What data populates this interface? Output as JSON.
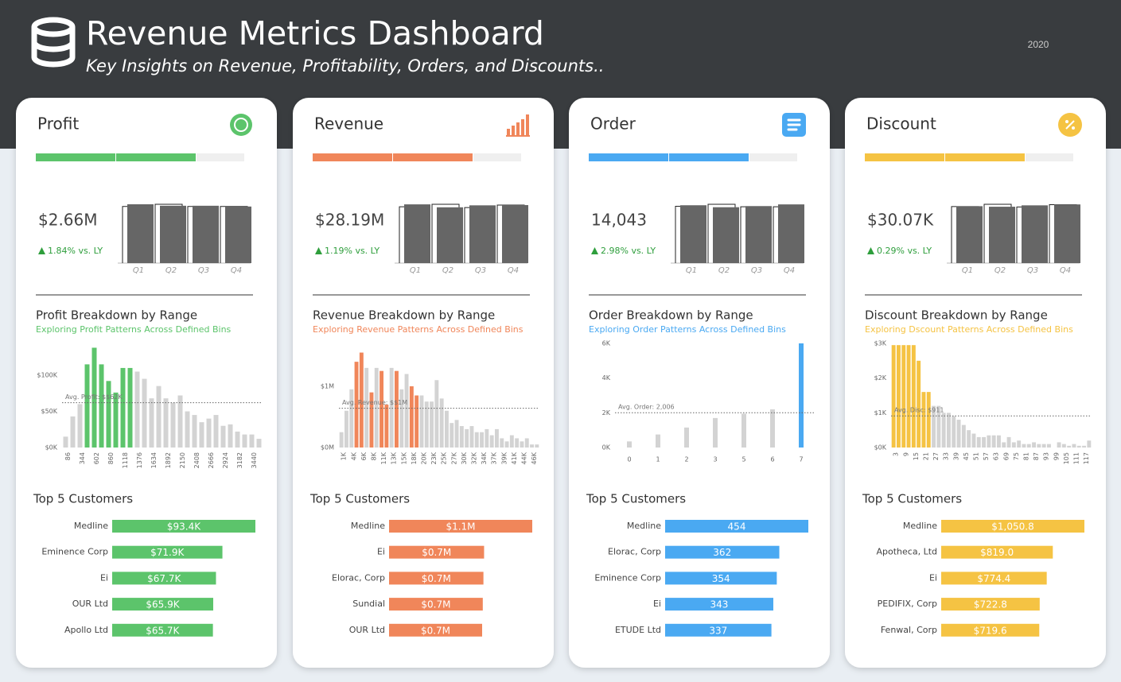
{
  "header": {
    "title": "Revenue Metrics Dashboard",
    "subtitle": "Key Insights on Revenue, Profitability, Orders, and Discounts..",
    "year": "2020"
  },
  "cards": [
    {
      "name": "Profit",
      "color": "#5cc46b",
      "kpi": "$2.66M",
      "change": "1.84% vs. LY",
      "quarters": {
        "type": "bar",
        "categories": [
          "Q1",
          "Q2",
          "Q3",
          "Q4"
        ],
        "values": [
          680000,
          663000,
          663000,
          654000
        ],
        "previous": [
          655000,
          680000,
          655000,
          655000
        ]
      },
      "breakdown": {
        "type": "histogram",
        "title": "Profit Breakdown by Range",
        "subtitle": "Exploring Profit Patterns Across Defined Bins",
        "ylim": [
          0,
          144000
        ],
        "yticks": [
          {
            "value": 0,
            "label": "$0K"
          },
          {
            "value": 50000,
            "label": "$50K"
          },
          {
            "value": 100000,
            "label": "$100K"
          }
        ],
        "rotated_labels": true,
        "categories": [
          "86",
          null,
          "344",
          null,
          "602",
          null,
          "860",
          null,
          "1118",
          null,
          "1376",
          null,
          "1634",
          null,
          "1892",
          null,
          "2150",
          null,
          "2408",
          null,
          "2666",
          null,
          "2924",
          null,
          "3182",
          null,
          "3440",
          null
        ],
        "values": [
          15000,
          43000,
          60000,
          115000,
          138000,
          115000,
          92000,
          76000,
          110000,
          110000,
          105000,
          95000,
          68000,
          85000,
          68000,
          62000,
          72000,
          50000,
          45000,
          35000,
          40000,
          45000,
          30000,
          32000,
          22000,
          18000,
          18000,
          12000
        ],
        "highlighted": [
          false,
          false,
          false,
          true,
          true,
          true,
          true,
          true,
          true,
          true,
          false,
          false,
          false,
          false,
          false,
          false,
          false,
          false,
          false,
          false,
          false,
          false,
          false,
          false,
          false,
          false,
          false,
          false
        ],
        "average": {
          "value": 62000,
          "label": "Avg. Profit: $$62K"
        }
      },
      "top": {
        "type": "bar",
        "title": "Top 5 Customers",
        "categories": [
          "Medline",
          "Eminence Corp",
          "Ei",
          "OUR Ltd",
          "Apollo Ltd"
        ],
        "values": [
          93400,
          71900,
          67700,
          65900,
          65700
        ],
        "value_labels": [
          "$93.4K",
          "$71.9K",
          "$67.7K",
          "$65.9K",
          "$65.7K"
        ]
      }
    },
    {
      "name": "Revenue",
      "color": "#f0865a",
      "kpi": "$28.19M",
      "change": "1.19% vs. LY",
      "quarters": {
        "type": "bar",
        "categories": [
          "Q1",
          "Q2",
          "Q3",
          "Q4"
        ],
        "values": [
          7190000,
          6830000,
          7070000,
          7100000
        ],
        "previous": [
          6900000,
          7200000,
          6800000,
          7100000
        ]
      },
      "breakdown": {
        "type": "histogram",
        "title": "Revenue Breakdown by Range",
        "subtitle": "Exploring Revenue Patterns Across Defined Bins",
        "ylim": [
          0,
          1700000
        ],
        "yticks": [
          {
            "value": 0,
            "label": "$0M"
          },
          {
            "value": 1000000,
            "label": "$1M"
          }
        ],
        "rotated_labels": true,
        "categories": [
          "1K",
          null,
          "4K",
          null,
          "6K",
          null,
          "8K",
          null,
          "11K",
          null,
          "13K",
          null,
          "15K",
          null,
          "18K",
          null,
          "20K",
          null,
          "23K",
          null,
          "25K",
          null,
          "27K",
          null,
          "30K",
          null,
          "32K",
          null,
          "34K",
          null,
          "37K",
          null,
          "39K",
          null,
          "41K",
          null,
          "44K",
          null,
          "46K",
          null
        ],
        "values": [
          250000,
          600000,
          950000,
          1400000,
          1550000,
          1300000,
          900000,
          1300000,
          1250000,
          700000,
          1300000,
          1250000,
          950000,
          1200000,
          1000000,
          850000,
          850000,
          750000,
          750000,
          1100000,
          800000,
          600000,
          400000,
          450000,
          350000,
          300000,
          350000,
          250000,
          250000,
          300000,
          200000,
          300000,
          150000,
          100000,
          200000,
          150000,
          100000,
          150000,
          50000,
          50000
        ],
        "highlighted": [
          false,
          false,
          false,
          true,
          true,
          false,
          true,
          false,
          true,
          true,
          false,
          true,
          false,
          false,
          true,
          true,
          false,
          false,
          false,
          false,
          false,
          false,
          false,
          false,
          false,
          false,
          false,
          false,
          false,
          false,
          false,
          false,
          false,
          false,
          false,
          false,
          false,
          false,
          false,
          false
        ],
        "average": {
          "value": 640000,
          "label": "Avg. Revenue: $$1M"
        }
      },
      "top": {
        "type": "bar",
        "title": "Top 5 Customers",
        "categories": [
          "Medline",
          "Ei",
          "Elorac, Corp",
          "Sundial",
          "OUR Ltd"
        ],
        "values": [
          1100000,
          730000,
          725000,
          720000,
          715000
        ],
        "value_labels": [
          "$1.1M",
          "$0.7M",
          "$0.7M",
          "$0.7M",
          "$0.7M"
        ]
      }
    },
    {
      "name": "Order",
      "color": "#4aa9f2",
      "kpi": "14,043",
      "change": "2.98% vs. LY",
      "quarters": {
        "type": "bar",
        "categories": [
          "Q1",
          "Q2",
          "Q3",
          "Q4"
        ],
        "values": [
          3540,
          3420,
          3490,
          3593
        ],
        "previous": [
          3480,
          3600,
          3450,
          3450
        ]
      },
      "breakdown": {
        "type": "histogram",
        "title": "Order Breakdown by Range",
        "subtitle": "Exploring Order Patterns Across Defined Bins",
        "ylim": [
          0,
          6000
        ],
        "yticks": [
          {
            "value": 0,
            "label": "0K"
          },
          {
            "value": 2000,
            "label": "2K"
          },
          {
            "value": 4000,
            "label": "4K"
          },
          {
            "value": 6000,
            "label": "6K"
          }
        ],
        "rotated_labels": false,
        "categories": [
          "0",
          "1",
          "2",
          "3",
          "5",
          "6",
          "7"
        ],
        "values": [
          350,
          750,
          1150,
          1700,
          1950,
          2200,
          6000
        ],
        "highlighted": [
          false,
          false,
          false,
          false,
          false,
          false,
          true
        ],
        "average": {
          "value": 2006,
          "label": "Avg. Order: 2,006"
        }
      },
      "top": {
        "type": "bar",
        "title": "Top 5 Customers",
        "categories": [
          "Medline",
          "Elorac, Corp",
          "Eminence Corp",
          "Ei",
          "ETUDE Ltd"
        ],
        "values": [
          454,
          362,
          354,
          343,
          337
        ]
      }
    },
    {
      "name": "Discount",
      "color": "#f5c343",
      "kpi": "$30.07K",
      "change": "0.29% vs. LY",
      "quarters": {
        "type": "bar",
        "categories": [
          "Q1",
          "Q2",
          "Q3",
          "Q4"
        ],
        "values": [
          7450,
          7380,
          7560,
          7680
        ],
        "previous": [
          7400,
          7700,
          7350,
          7650
        ]
      },
      "breakdown": {
        "type": "histogram",
        "title": "Discount Breakdown by Range",
        "subtitle": "Exploring Dscount Patterns Across Defined Bins",
        "ylim": [
          0,
          3000
        ],
        "yticks": [
          {
            "value": 0,
            "label": "$0K"
          },
          {
            "value": 1000,
            "label": "$1K"
          },
          {
            "value": 2000,
            "label": "$2K"
          },
          {
            "value": 3000,
            "label": "$3K"
          }
        ],
        "rotated_labels": true,
        "categories": [
          "3",
          null,
          "9",
          null,
          "15",
          null,
          "21",
          null,
          "27",
          null,
          "33",
          null,
          "39",
          null,
          "45",
          null,
          "51",
          null,
          "57",
          null,
          "63",
          null,
          "69",
          null,
          "75",
          null,
          "81",
          null,
          "87",
          null,
          "93",
          null,
          "99",
          null,
          "105",
          null,
          "111",
          null,
          "117",
          null
        ],
        "values": [
          2950,
          2950,
          2950,
          2950,
          2950,
          2500,
          1600,
          1600,
          1200,
          1200,
          1000,
          1000,
          900,
          800,
          650,
          500,
          400,
          300,
          300,
          350,
          350,
          350,
          150,
          300,
          150,
          200,
          100,
          100,
          150,
          100,
          100,
          100,
          0,
          150,
          100,
          50,
          100,
          50,
          50,
          200
        ],
        "highlighted": [
          true,
          true,
          true,
          true,
          true,
          true,
          true,
          true,
          false,
          false,
          false,
          false,
          false,
          false,
          false,
          false,
          false,
          false,
          false,
          false,
          false,
          false,
          false,
          false,
          false,
          false,
          false,
          false,
          false,
          false,
          false,
          false,
          false,
          false,
          false,
          false,
          false,
          false,
          false,
          false
        ],
        "average": {
          "value": 911,
          "label": "Avg. Disc: $911"
        }
      },
      "top": {
        "type": "bar",
        "title": "Top 5 Customers",
        "categories": [
          "Medline",
          "Apotheca, Ltd",
          "Ei",
          "PEDIFIX, Corp",
          "Fenwal, Corp"
        ],
        "values": [
          1050.8,
          819.0,
          774.4,
          722.8,
          719.6
        ],
        "value_labels": [
          "$1,050.8",
          "$819.0",
          "$774.4",
          "$722.8",
          "$719.6"
        ]
      }
    }
  ]
}
